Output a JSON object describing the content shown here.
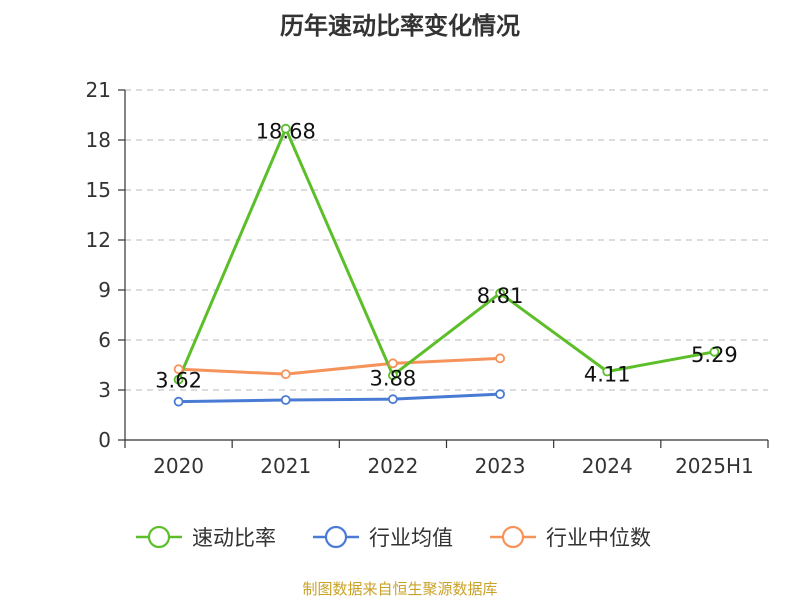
{
  "chart_data": {
    "type": "line",
    "title": "历年速动比率变化情况",
    "categories": [
      "2020",
      "2021",
      "2022",
      "2023",
      "2024",
      "2025H1"
    ],
    "ylim": [
      0,
      21
    ],
    "yticks": [
      "0",
      "3",
      "6",
      "9",
      "12",
      "15",
      "18",
      "21"
    ],
    "grid": true,
    "legend_position": "bottom",
    "series": [
      {
        "name": "速动比率",
        "color": "#5cbf2a",
        "values": [
          3.62,
          18.68,
          3.88,
          8.81,
          4.11,
          5.29
        ],
        "labels": [
          "3.62",
          "18.68",
          "3.88",
          "8.81",
          "4.11",
          "5.29"
        ]
      },
      {
        "name": "行业均值",
        "color": "#4a7bd4",
        "values": [
          2.3,
          2.4,
          2.45,
          2.75,
          null,
          null
        ],
        "labels": []
      },
      {
        "name": "行业中位数",
        "color": "#f5935a",
        "values": [
          4.25,
          3.95,
          4.6,
          4.9,
          null,
          null
        ],
        "labels": []
      }
    ]
  },
  "source": "制图数据来自恒生聚源数据库"
}
